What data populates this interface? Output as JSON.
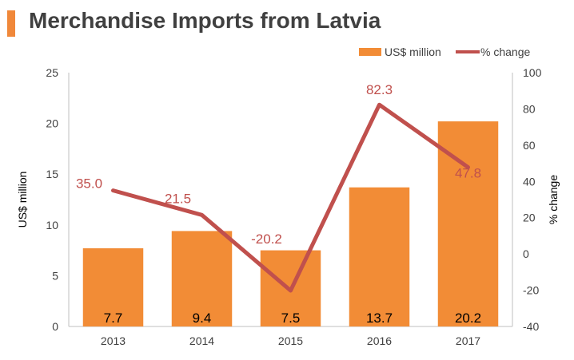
{
  "title": "Merchandise Imports from Latvia",
  "colors": {
    "bar": "#f28c36",
    "line": "#c0504d",
    "title_bar": "#f0883a",
    "text": "#404040"
  },
  "chart_data": {
    "type": "bar",
    "categories": [
      "2013",
      "2014",
      "2015",
      "2016",
      "2017"
    ],
    "series": [
      {
        "name": "US$ million",
        "type": "bar",
        "axis": "left",
        "values": [
          7.7,
          9.4,
          7.5,
          13.7,
          20.2
        ],
        "labels": [
          "7.7",
          "9.4",
          "7.5",
          "13.7",
          "20.2"
        ]
      },
      {
        "name": "% change",
        "type": "line",
        "axis": "right",
        "values": [
          35.0,
          21.5,
          -20.2,
          82.3,
          47.8
        ],
        "labels": [
          "35.0",
          "21.5",
          "-20.2",
          "82.3",
          "47.8"
        ]
      }
    ],
    "ylabel": "US$ million",
    "y2label": "% change",
    "ylim": [
      0,
      25
    ],
    "y2lim": [
      -40,
      100
    ],
    "yticks": [
      "0",
      "5",
      "10",
      "15",
      "20",
      "25"
    ],
    "y2ticks": [
      "-40",
      "-20",
      "0",
      "20",
      "40",
      "60",
      "80",
      "100"
    ],
    "legend_position": "top-right",
    "grid": false
  }
}
